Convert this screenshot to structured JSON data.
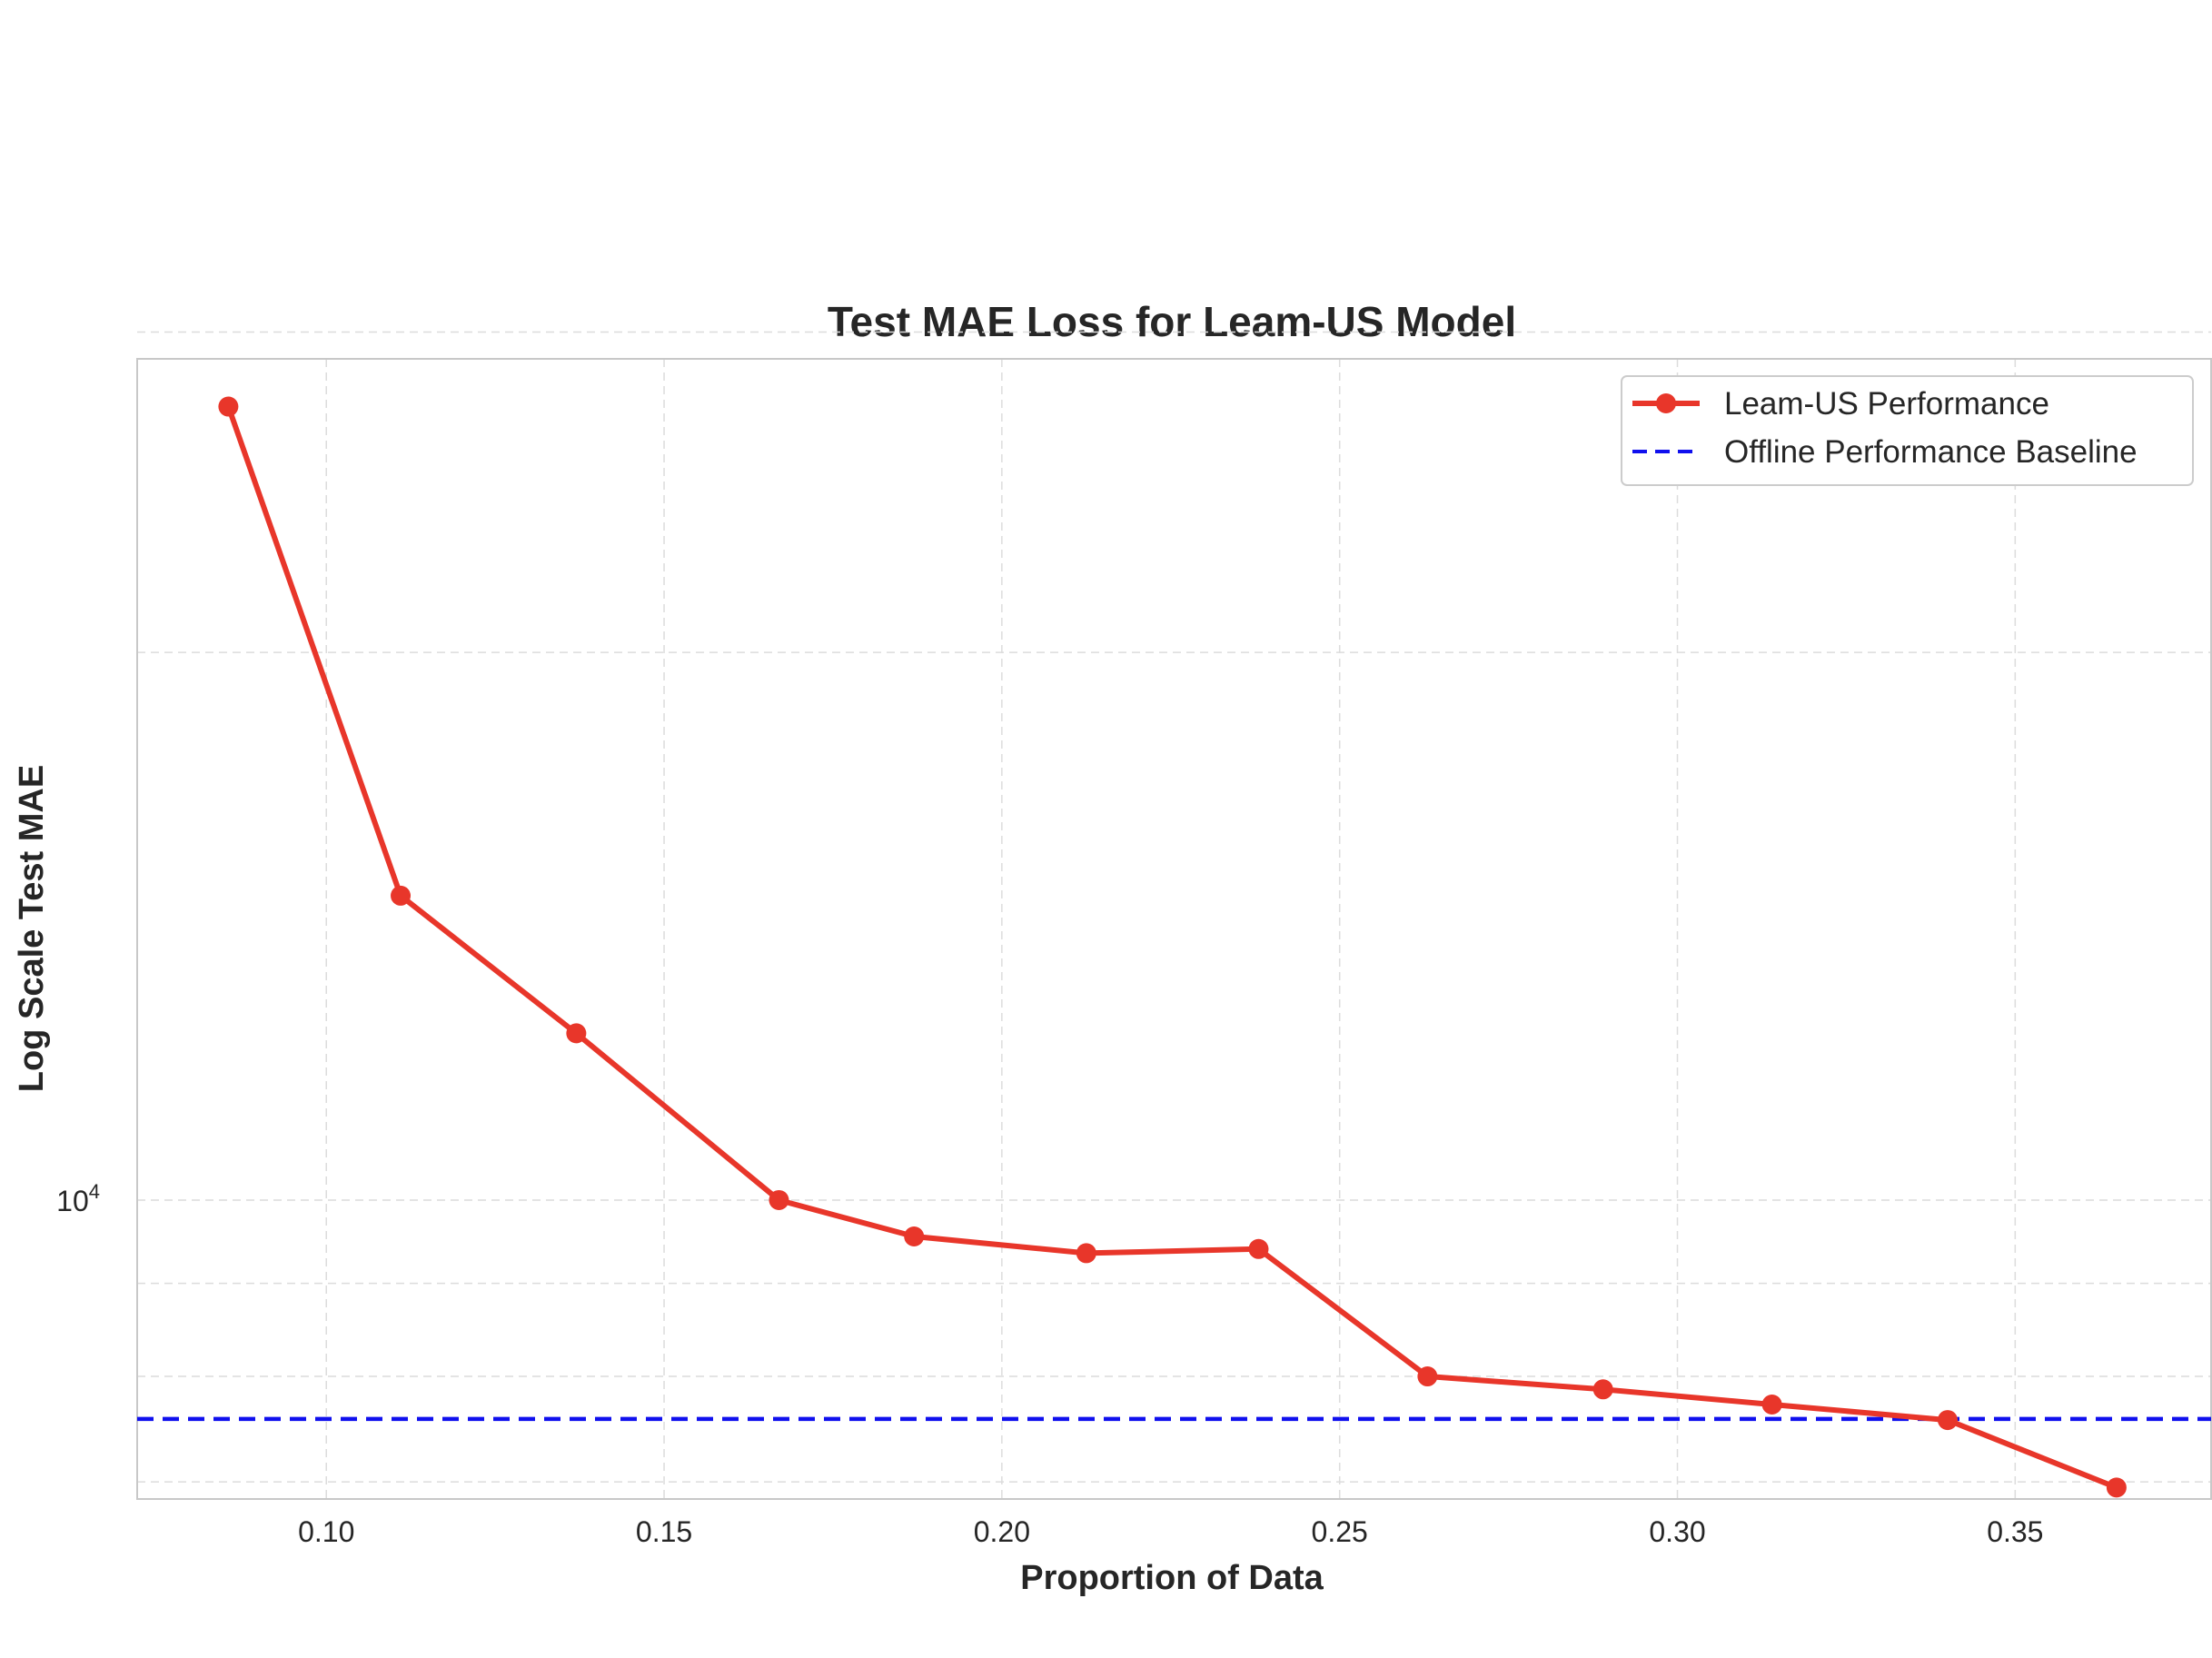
{
  "chart_data": {
    "type": "line",
    "title": "Test MAE Loss for Leam-US Model",
    "xlabel": "Proportion of Data",
    "ylabel": "Log Scale Test MAE",
    "xscale": "linear",
    "yscale": "log",
    "xlim": [
      0.072,
      0.379
    ],
    "ylim": [
      6850,
      29000
    ],
    "xticks": [
      0.1,
      0.15,
      0.2,
      0.25,
      0.3,
      0.35
    ],
    "xtick_labels": [
      "0.10",
      "0.15",
      "0.20",
      "0.25",
      "0.30",
      "0.35"
    ],
    "ytick_major": [
      10000
    ],
    "ytick_major_base": "10",
    "ytick_major_exp": "4",
    "ytick_minor": [
      7000,
      8000,
      9000,
      20000,
      30000
    ],
    "grid": true,
    "legend_position": "top-right",
    "series": [
      {
        "name": "Leam-US Performance",
        "style": "solid-line-with-markers",
        "color": "#e8362a",
        "x": [
          0.0855,
          0.111,
          0.137,
          0.167,
          0.187,
          0.2125,
          0.238,
          0.263,
          0.289,
          0.314,
          0.34,
          0.365
        ],
        "y": [
          27300,
          14700,
          12350,
          10000,
          9550,
          9350,
          9400,
          8000,
          7870,
          7720,
          7570,
          6950
        ]
      },
      {
        "name": "Offline Performance Baseline",
        "style": "dashed-horizontal-line",
        "color": "#1010ee",
        "y": 7580
      }
    ]
  }
}
